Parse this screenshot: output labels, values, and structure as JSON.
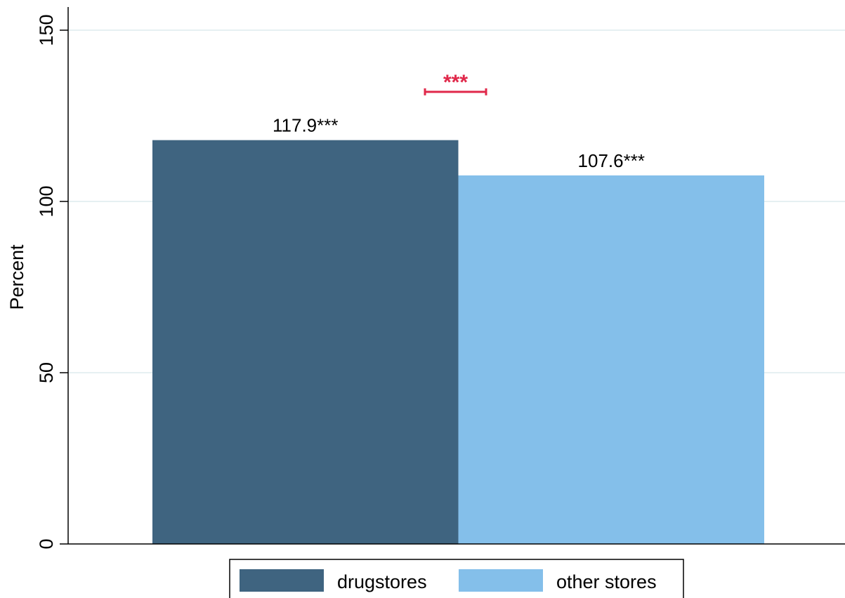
{
  "chart_data": {
    "type": "bar",
    "categories": [
      "drugstores",
      "other stores"
    ],
    "series": [
      {
        "name": "drugstores",
        "value": 117.9,
        "label": "117.9***",
        "color": "#3f6480"
      },
      {
        "name": "other stores",
        "value": 107.6,
        "label": "107.6***",
        "color": "#84bfea"
      }
    ],
    "title": "",
    "xlabel": "",
    "ylabel": "Percent",
    "ylim": [
      0,
      150
    ],
    "yticks": [
      0,
      50,
      100,
      150
    ],
    "ytick_labels": [
      "0",
      "50",
      "100",
      "150"
    ],
    "grid": true,
    "grid_color": "#e6f0f2",
    "significance": {
      "label": "***",
      "value": 132,
      "color": "#e0284a"
    },
    "legend": {
      "position": "bottom",
      "entries": [
        "drugstores",
        "other stores"
      ]
    }
  }
}
